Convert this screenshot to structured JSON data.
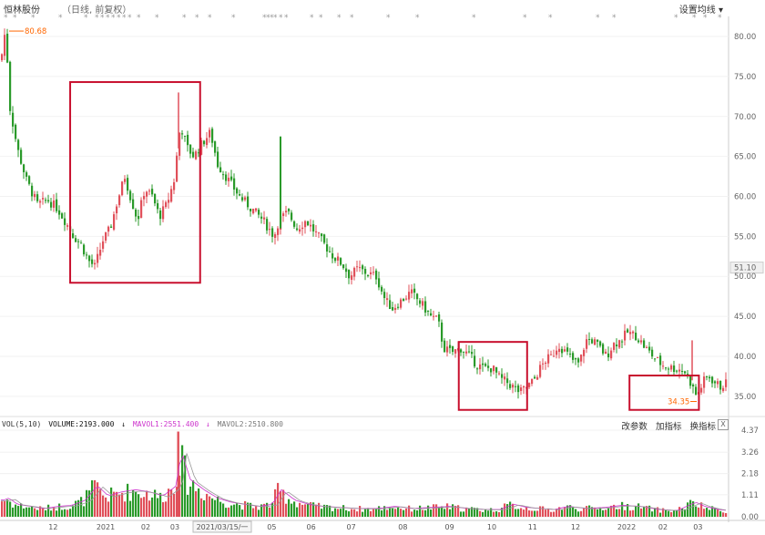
{
  "header": {
    "title": "恒林股份",
    "subtitle": "（日线, 前复权）",
    "settings_label": "设置均线",
    "star_glyph": "*"
  },
  "volume_panel": {
    "vol_label": "VOL(5,10)",
    "volume_label": "VOLUME:2193.000",
    "mavol1_label": "MAVOL1:2551.400",
    "mavol2_label": "MAVOL2:2510.800",
    "tools": [
      "改参数",
      "加指标",
      "换指标"
    ],
    "close_label": "X",
    "colors": {
      "volume": "#111111",
      "mavol1": "#cc33cc",
      "mavol2": "#888888"
    }
  },
  "colors": {
    "up": "#e0505a",
    "down": "#2a9a2a",
    "box": "#c8102e",
    "annotation": "#ff6600",
    "ma5": "#cc33cc",
    "ma10": "#999999"
  },
  "chart_data": {
    "type": "candlestick",
    "title": "恒林股份",
    "price_axis": {
      "ticks": [
        "80.00",
        "75.00",
        "70.00",
        "65.00",
        "60.00",
        "55.00",
        "51.10",
        "50.00",
        "45.00",
        "40.00",
        "35.00"
      ],
      "ylim": [
        32.7,
        81.6
      ]
    },
    "volume_axis": {
      "ticks": [
        "4.37",
        "3.26",
        "2.18",
        "1.11",
        "0.00"
      ],
      "ylim": [
        0,
        4.37
      ]
    },
    "x_ticks": [
      "12",
      "2021",
      "02",
      "03",
      "2021/03/15/一",
      "05",
      "06",
      "07",
      "08",
      "09",
      "10",
      "11",
      "12",
      "2022",
      "02",
      "03"
    ],
    "highlight_value": "51.10",
    "annotations": [
      {
        "label": "80.68",
        "value": 80.68,
        "kind": "high"
      },
      {
        "label": "34.35",
        "value": 34.35,
        "kind": "low"
      }
    ],
    "price_path": [
      [
        0,
        77
      ],
      [
        5,
        81
      ],
      [
        10,
        71
      ],
      [
        18,
        66
      ],
      [
        28,
        62
      ],
      [
        40,
        59
      ],
      [
        52,
        59.5
      ],
      [
        62,
        58.5
      ],
      [
        70,
        57
      ],
      [
        80,
        55
      ],
      [
        88,
        54
      ],
      [
        96,
        52
      ],
      [
        103,
        51.2
      ],
      [
        112,
        54.5
      ],
      [
        120,
        56
      ],
      [
        128,
        59.5
      ],
      [
        136,
        62.5
      ],
      [
        142,
        60
      ],
      [
        150,
        57
      ],
      [
        158,
        61
      ],
      [
        166,
        60
      ],
      [
        174,
        57.5
      ],
      [
        182,
        59
      ],
      [
        190,
        62
      ],
      [
        197,
        69
      ],
      [
        205,
        66
      ],
      [
        212,
        65
      ],
      [
        220,
        66.5
      ],
      [
        230,
        68
      ],
      [
        238,
        64
      ],
      [
        250,
        62
      ],
      [
        262,
        60
      ],
      [
        275,
        58.5
      ],
      [
        288,
        57
      ],
      [
        300,
        55
      ],
      [
        305,
        57
      ],
      [
        315,
        58
      ],
      [
        325,
        56
      ],
      [
        335,
        57
      ],
      [
        345,
        55.5
      ],
      [
        355,
        54
      ],
      [
        365,
        52.5
      ],
      [
        375,
        51.5
      ],
      [
        383,
        50
      ],
      [
        392,
        51
      ],
      [
        400,
        50.5
      ],
      [
        412,
        50
      ],
      [
        422,
        47
      ],
      [
        430,
        46
      ],
      [
        440,
        47
      ],
      [
        450,
        48
      ],
      [
        462,
        46.5
      ],
      [
        472,
        45
      ],
      [
        480,
        44.5
      ],
      [
        486,
        41
      ],
      [
        495,
        40.5
      ],
      [
        505,
        41
      ],
      [
        515,
        40
      ],
      [
        522,
        39
      ],
      [
        530,
        38.5
      ],
      [
        540,
        38.5
      ],
      [
        548,
        37.2
      ],
      [
        555,
        36.8
      ],
      [
        562,
        36.2
      ],
      [
        570,
        35.5
      ],
      [
        578,
        36.2
      ],
      [
        585,
        37
      ],
      [
        592,
        38.5
      ],
      [
        598,
        39.5
      ],
      [
        605,
        40
      ],
      [
        612,
        41.5
      ],
      [
        620,
        40.5
      ],
      [
        628,
        39.5
      ],
      [
        635,
        39
      ],
      [
        642,
        42
      ],
      [
        650,
        42
      ],
      [
        658,
        41
      ],
      [
        665,
        40
      ],
      [
        672,
        41.5
      ],
      [
        680,
        42
      ],
      [
        688,
        43
      ],
      [
        698,
        42.5
      ],
      [
        708,
        41
      ],
      [
        716,
        40
      ],
      [
        725,
        39
      ],
      [
        735,
        38.6
      ],
      [
        745,
        38.4
      ],
      [
        752,
        38
      ],
      [
        758,
        36.5
      ],
      [
        764,
        35
      ],
      [
        768,
        36
      ],
      [
        773,
        37.2
      ],
      [
        778,
        37.4
      ],
      [
        784,
        36.7
      ],
      [
        790,
        36.2
      ],
      [
        795,
        36.6
      ]
    ],
    "volume_path": [
      [
        0,
        0.8
      ],
      [
        6,
        0.9
      ],
      [
        15,
        0.6
      ],
      [
        30,
        0.5
      ],
      [
        45,
        0.4
      ],
      [
        60,
        0.5
      ],
      [
        75,
        0.55
      ],
      [
        90,
        0.8
      ],
      [
        103,
        1.5
      ],
      [
        115,
        1.0
      ],
      [
        130,
        1.2
      ],
      [
        145,
        1.3
      ],
      [
        160,
        1.2
      ],
      [
        175,
        1.0
      ],
      [
        190,
        1.5
      ],
      [
        195,
        3.2
      ],
      [
        205,
        1.8
      ],
      [
        220,
        1.3
      ],
      [
        235,
        0.9
      ],
      [
        250,
        0.7
      ],
      [
        265,
        0.6
      ],
      [
        280,
        0.5
      ],
      [
        295,
        0.6
      ],
      [
        305,
        1.3
      ],
      [
        320,
        0.8
      ],
      [
        335,
        0.6
      ],
      [
        350,
        0.5
      ],
      [
        370,
        0.45
      ],
      [
        390,
        0.4
      ],
      [
        410,
        0.4
      ],
      [
        430,
        0.5
      ],
      [
        450,
        0.4
      ],
      [
        470,
        0.45
      ],
      [
        490,
        0.5
      ],
      [
        510,
        0.4
      ],
      [
        530,
        0.35
      ],
      [
        545,
        0.35
      ],
      [
        560,
        0.6
      ],
      [
        575,
        0.45
      ],
      [
        590,
        0.4
      ],
      [
        605,
        0.35
      ],
      [
        620,
        0.5
      ],
      [
        640,
        0.4
      ],
      [
        660,
        0.45
      ],
      [
        680,
        0.55
      ],
      [
        700,
        0.5
      ],
      [
        720,
        0.35
      ],
      [
        740,
        0.3
      ],
      [
        760,
        0.7
      ],
      [
        770,
        0.5
      ],
      [
        785,
        0.35
      ],
      [
        795,
        0.3
      ]
    ],
    "highlight_boxes": [
      {
        "x": [
          0.0963,
          0.2747
        ],
        "y": [
          49.2,
          74.3
        ]
      },
      {
        "x": [
          0.6297,
          0.7235
        ],
        "y": [
          33.3,
          41.8
        ]
      },
      {
        "x": [
          0.864,
          0.9593
        ],
        "y": [
          33.3,
          37.6
        ]
      }
    ]
  }
}
